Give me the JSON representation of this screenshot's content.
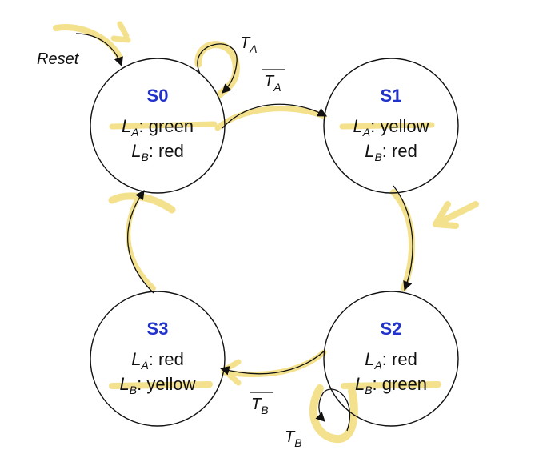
{
  "colors": {
    "state_name": "#2233cc",
    "highlight": "#f2dc7a",
    "ink": "#111111"
  },
  "reset": {
    "label": "Reset"
  },
  "states": [
    {
      "id": "S0",
      "name": "S0",
      "la_var": "L",
      "la_sub": "A",
      "la_val": ": green",
      "lb_var": "L",
      "lb_sub": "B",
      "lb_val": ": red"
    },
    {
      "id": "S1",
      "name": "S1",
      "la_var": "L",
      "la_sub": "A",
      "la_val": ": yellow",
      "lb_var": "L",
      "lb_sub": "B",
      "lb_val": ": red"
    },
    {
      "id": "S2",
      "name": "S2",
      "la_var": "L",
      "la_sub": "A",
      "la_val": ": red",
      "lb_var": "L",
      "lb_sub": "B",
      "lb_val": ": green"
    },
    {
      "id": "S3",
      "name": "S3",
      "la_var": "L",
      "la_sub": "A",
      "la_val": ": red",
      "lb_var": "L",
      "lb_sub": "B",
      "lb_val": ": yellow"
    }
  ],
  "transitions": [
    {
      "from": "S0",
      "to": "S0",
      "var": "T",
      "sub": "A",
      "negated": false
    },
    {
      "from": "S0",
      "to": "S1",
      "var": "T",
      "sub": "A",
      "negated": true
    },
    {
      "from": "S1",
      "to": "S2",
      "var": "",
      "sub": "",
      "negated": false
    },
    {
      "from": "S2",
      "to": "S2",
      "var": "T",
      "sub": "B",
      "negated": false
    },
    {
      "from": "S2",
      "to": "S3",
      "var": "T",
      "sub": "B",
      "negated": true
    },
    {
      "from": "S3",
      "to": "S0",
      "var": "",
      "sub": "",
      "negated": false
    }
  ]
}
